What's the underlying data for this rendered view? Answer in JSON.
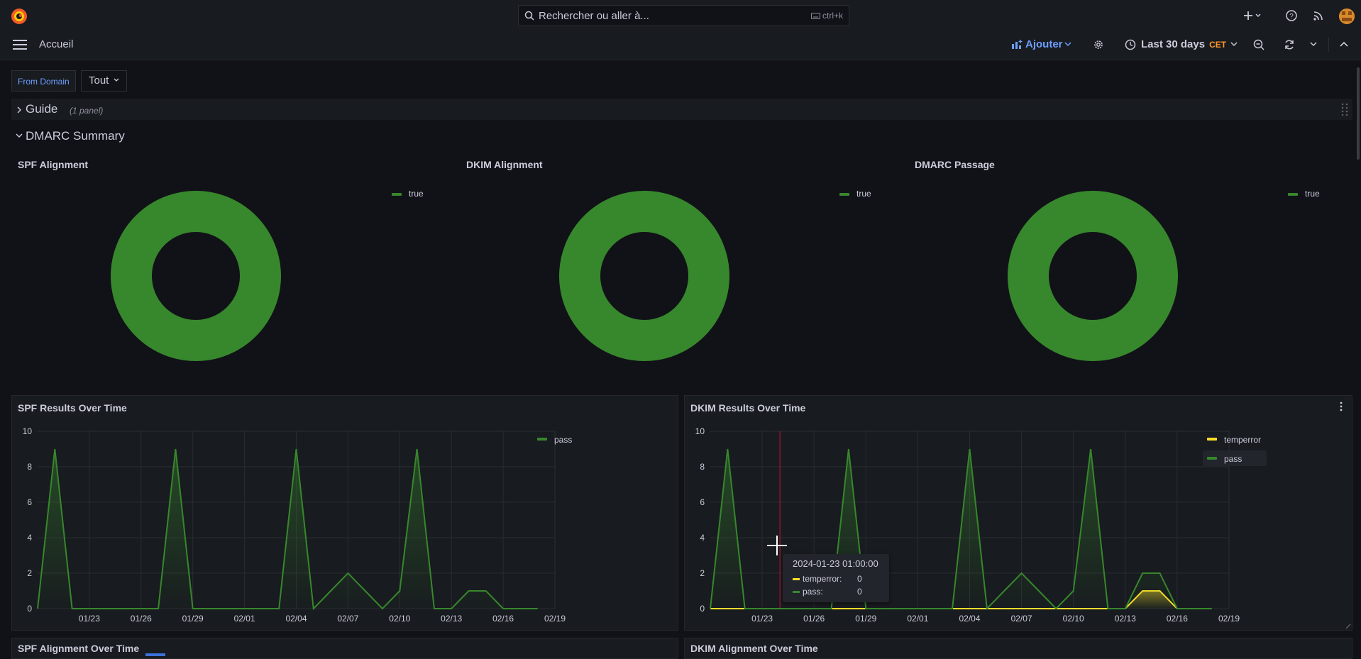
{
  "topbar": {
    "search_placeholder": "Rechercher ou aller à...",
    "search_shortcut": "ctrl+k",
    "breadcrumb": "Accueil",
    "add_label": "Ajouter",
    "time_range": "Last 30 days",
    "timezone": "CET"
  },
  "variables": {
    "label": "From Domain",
    "value": "Tout"
  },
  "rows": {
    "guide": {
      "title": "Guide",
      "subtitle": "(1 panel)"
    },
    "summary": {
      "title": "DMARC Summary"
    }
  },
  "pies": [
    {
      "title": "SPF Alignment",
      "legend": "true",
      "color": "#37872d"
    },
    {
      "title": "DKIM Alignment",
      "legend": "true",
      "color": "#37872d"
    },
    {
      "title": "DMARC Passage",
      "legend": "true",
      "color": "#37872d"
    }
  ],
  "chart_data": [
    {
      "type": "area",
      "title": "SPF Results Over Time",
      "ylim": [
        0,
        10
      ],
      "yticks": [
        "0",
        "2",
        "4",
        "6",
        "8",
        "10"
      ],
      "xticks": [
        "01/23",
        "01/26",
        "01/29",
        "02/01",
        "02/04",
        "02/07",
        "02/10",
        "02/13",
        "02/16",
        "02/19"
      ],
      "x_start": "2024-01-20",
      "legend_position": "right",
      "series": [
        {
          "name": "pass",
          "color": "#37872d",
          "values": [
            0,
            9,
            0,
            0,
            0,
            0,
            0,
            0,
            9,
            0,
            0,
            0,
            0,
            0,
            0,
            9,
            0,
            1,
            2,
            1,
            0,
            1,
            9,
            0,
            0,
            1,
            1,
            0,
            0,
            0
          ]
        }
      ]
    },
    {
      "type": "area",
      "title": "DKIM Results Over Time",
      "ylim": [
        0,
        10
      ],
      "yticks": [
        "0",
        "2",
        "4",
        "6",
        "8",
        "10"
      ],
      "xticks": [
        "01/23",
        "01/26",
        "01/29",
        "02/01",
        "02/04",
        "02/07",
        "02/10",
        "02/13",
        "02/16",
        "02/19"
      ],
      "x_start": "2024-01-20",
      "legend_position": "right",
      "series": [
        {
          "name": "temperror",
          "color": "#fade2a",
          "values": [
            0,
            0,
            0,
            0,
            0,
            0,
            0,
            0,
            0,
            0,
            0,
            0,
            0,
            0,
            0,
            0,
            0,
            0,
            0,
            0,
            0,
            0,
            0,
            0,
            0,
            1,
            1,
            0,
            0,
            0
          ]
        },
        {
          "name": "pass",
          "color": "#37872d",
          "values": [
            0,
            9,
            0,
            0,
            0,
            0,
            0,
            0,
            9,
            0,
            0,
            0,
            0,
            0,
            0,
            9,
            0,
            1,
            2,
            1,
            0,
            1,
            9,
            0,
            0,
            2,
            2,
            0,
            0,
            0
          ]
        }
      ]
    }
  ],
  "tooltip": {
    "time": "2024-01-23 01:00:00",
    "rows": [
      {
        "name": "temperror:",
        "value": "0",
        "color": "#fade2a"
      },
      {
        "name": "pass:",
        "value": "0",
        "color": "#37872d"
      }
    ]
  },
  "bottom_panels": {
    "left": "SPF Alignment Over Time",
    "right": "DKIM Alignment Over Time"
  }
}
